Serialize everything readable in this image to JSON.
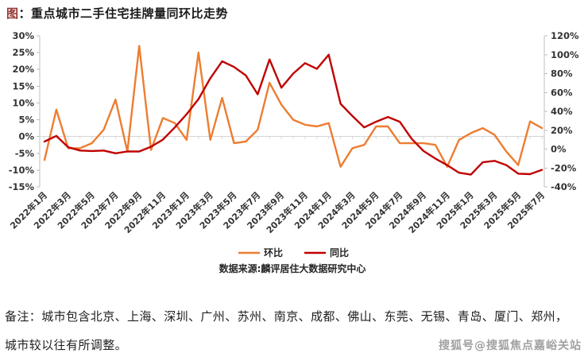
{
  "title": {
    "prefix": "图",
    "text": "：重点城市二手住宅挂牌量同环比走势"
  },
  "chart_data": {
    "type": "line",
    "title": "重点城市二手住宅挂牌量同环比走势",
    "categories": [
      "2022年1月",
      "2022年2月",
      "2022年3月",
      "2022年4月",
      "2022年5月",
      "2022年6月",
      "2022年7月",
      "2022年8月",
      "2022年9月",
      "2022年10月",
      "2022年11月",
      "2022年12月",
      "2023年1月",
      "2023年2月",
      "2023年3月",
      "2023年4月",
      "2023年5月",
      "2023年6月",
      "2023年7月",
      "2023年8月",
      "2023年9月",
      "2023年10月",
      "2023年11月",
      "2023年12月",
      "2024年1月",
      "2024年2月",
      "2024年3月",
      "2024年4月",
      "2024年5月",
      "2024年6月",
      "2024年7月",
      "2024年8月",
      "2024年9月",
      "2024年10月",
      "2024年11月",
      "2024年12月",
      "2025年1月",
      "2025年2月",
      "2025年3月",
      "2025年4月",
      "2025年5月",
      "2025年6月",
      "2025年7月"
    ],
    "x_tick_labels": [
      "2022年1月",
      "2022年3月",
      "2022年5月",
      "2022年7月",
      "2022年9月",
      "2022年11月",
      "2023年1月",
      "2023年3月",
      "2023年5月",
      "2023年7月",
      "2023年9月",
      "2023年11月",
      "2024年1月",
      "2024年3月",
      "2024年5月",
      "2024年7月",
      "2024年9月",
      "2024年11月",
      "2025年1月",
      "2025年3月",
      "2025年5月",
      "2025年7月"
    ],
    "series": [
      {
        "name": "环比",
        "axis": "left",
        "color": "#ED7D31",
        "values": [
          -7,
          8,
          -3.5,
          -3.5,
          -2,
          2,
          11,
          -4.5,
          27,
          -4,
          5.5,
          4,
          -1,
          25,
          -1,
          11.5,
          -2,
          -1.5,
          2,
          16,
          9.5,
          5,
          3.5,
          3,
          4,
          -9,
          -3.5,
          -2.5,
          3,
          3,
          -2,
          -2,
          -2,
          -2.5,
          -9,
          -1,
          1,
          2.5,
          0.5,
          -4.5,
          -8.5,
          4.5,
          2.5
        ]
      },
      {
        "name": "同比",
        "axis": "right",
        "color": "#C00000",
        "values": [
          8,
          14,
          2,
          -1.5,
          -2,
          -1.5,
          -4.5,
          -2.5,
          -2.5,
          2.5,
          10,
          23,
          37,
          53,
          75,
          93,
          87,
          78,
          58,
          95,
          65,
          80,
          91,
          85,
          100,
          48,
          35,
          23,
          29,
          34,
          29,
          11,
          -2,
          -10,
          -17,
          -25,
          -27,
          -14,
          -12.5,
          -17,
          -26,
          -26.5,
          -22
        ]
      }
    ],
    "left_axis": {
      "min": -15,
      "max": 30,
      "step": 5,
      "ticks": [
        "30%",
        "25%",
        "20%",
        "15%",
        "10%",
        "5%",
        "0%",
        "-5%",
        "-10%",
        "-15%"
      ]
    },
    "right_axis": {
      "min": -40,
      "max": 120,
      "step": 20,
      "ticks": [
        "120%",
        "100%",
        "80%",
        "60%",
        "40%",
        "20%",
        "0%",
        "-20%",
        "-40%"
      ]
    },
    "grid": false,
    "legend_position": "bottom"
  },
  "legend": {
    "items": [
      {
        "label": "环比",
        "color": "#ED7D31"
      },
      {
        "label": "同比",
        "color": "#C00000"
      }
    ]
  },
  "source": "数据来源:麟评居住大数据研究中心",
  "notes": {
    "line1": "备注：城市包含北京、上海、深圳、广州、苏州、南京、成都、佛山、东莞、无锡、青岛、厦门、郑州，",
    "line2": "城市较以往有所调整。"
  },
  "watermark": "搜狐号@搜狐焦点嘉峪关站",
  "colors": {
    "title_prefix": "#953735",
    "axis_line": "#bfbfbf",
    "category_axis": "#d6d6d6",
    "tick_label": "#333333",
    "legend_text": "#262626"
  }
}
